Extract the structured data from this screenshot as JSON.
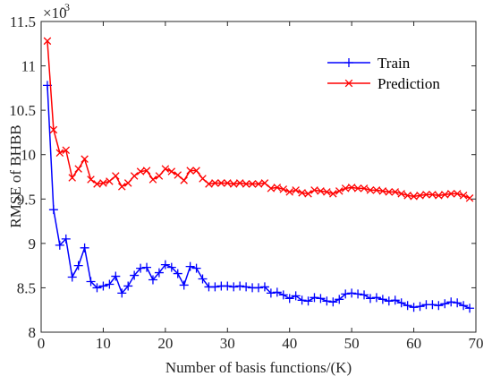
{
  "chart_data": {
    "type": "line",
    "title": "",
    "xlabel": "Number of basis functions/(K)",
    "ylabel": "RMSE of BHBB",
    "y_multiplier": "×10",
    "y_multiplier_exp": "-3",
    "xlim": [
      0,
      70
    ],
    "ylim": [
      8,
      11.5
    ],
    "x_ticks": [
      0,
      10,
      20,
      30,
      40,
      50,
      60,
      70
    ],
    "y_ticks": [
      8,
      8.5,
      9,
      9.5,
      10,
      10.5,
      11,
      11.5
    ],
    "grid": false,
    "legend_position": "top-right",
    "x": [
      1,
      2,
      3,
      4,
      5,
      6,
      7,
      8,
      9,
      10,
      11,
      12,
      13,
      14,
      15,
      16,
      17,
      18,
      19,
      20,
      21,
      22,
      23,
      24,
      25,
      26,
      27,
      28,
      29,
      30,
      31,
      32,
      33,
      34,
      35,
      36,
      37,
      38,
      39,
      40,
      41,
      42,
      43,
      44,
      45,
      46,
      47,
      48,
      49,
      50,
      51,
      52,
      53,
      54,
      55,
      56,
      57,
      58,
      59,
      60,
      61,
      62,
      63,
      64,
      65,
      66,
      67,
      68,
      69
    ],
    "series": [
      {
        "name": "Train",
        "color": "#0000ff",
        "marker": "+",
        "values": [
          10.78,
          9.38,
          8.98,
          9.05,
          8.62,
          8.75,
          8.95,
          8.57,
          8.5,
          8.52,
          8.54,
          8.63,
          8.44,
          8.52,
          8.64,
          8.72,
          8.73,
          8.59,
          8.67,
          8.76,
          8.73,
          8.66,
          8.53,
          8.74,
          8.72,
          8.6,
          8.51,
          8.51,
          8.52,
          8.52,
          8.51,
          8.52,
          8.51,
          8.5,
          8.5,
          8.51,
          8.44,
          8.45,
          8.42,
          8.38,
          8.41,
          8.36,
          8.35,
          8.39,
          8.38,
          8.35,
          8.34,
          8.37,
          8.43,
          8.44,
          8.43,
          8.42,
          8.38,
          8.39,
          8.37,
          8.35,
          8.36,
          8.33,
          8.3,
          8.28,
          8.29,
          8.31,
          8.31,
          8.3,
          8.32,
          8.34,
          8.33,
          8.3,
          8.27
        ]
      },
      {
        "name": "Prediction",
        "color": "#ff0000",
        "marker": "x",
        "values": [
          11.28,
          10.28,
          10.02,
          10.05,
          9.74,
          9.84,
          9.95,
          9.72,
          9.67,
          9.68,
          9.7,
          9.76,
          9.64,
          9.68,
          9.76,
          9.81,
          9.82,
          9.72,
          9.76,
          9.84,
          9.81,
          9.77,
          9.71,
          9.82,
          9.82,
          9.73,
          9.67,
          9.68,
          9.68,
          9.68,
          9.67,
          9.68,
          9.67,
          9.67,
          9.67,
          9.68,
          9.62,
          9.63,
          9.61,
          9.58,
          9.6,
          9.57,
          9.56,
          9.6,
          9.59,
          9.58,
          9.56,
          9.59,
          9.62,
          9.63,
          9.62,
          9.62,
          9.6,
          9.6,
          9.59,
          9.58,
          9.58,
          9.56,
          9.54,
          9.53,
          9.54,
          9.55,
          9.55,
          9.54,
          9.55,
          9.56,
          9.56,
          9.54,
          9.51
        ]
      }
    ]
  }
}
